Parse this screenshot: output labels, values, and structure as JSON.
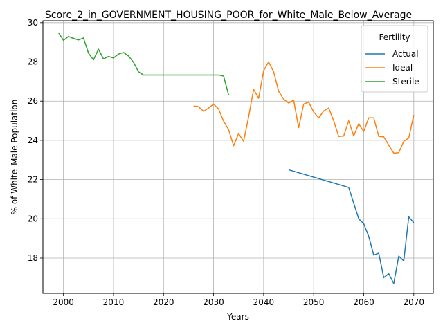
{
  "chart_data": {
    "type": "line",
    "title": "Score_2_in_GOVERNMENT_HOUSING_POOR_for_White_Male_Below_Average",
    "xlabel": "Years",
    "ylabel": "% of White_Male Population",
    "xlim": [
      1995.9,
      2073.9
    ],
    "ylim": [
      16.2,
      30.1
    ],
    "xticks": [
      2000,
      2010,
      2020,
      2030,
      2040,
      2050,
      2060,
      2070
    ],
    "yticks": [
      18,
      20,
      22,
      24,
      26,
      28,
      30
    ],
    "grid": true,
    "legend": {
      "title": "Fertility",
      "position": "top-right"
    },
    "series": [
      {
        "name": "Actual",
        "color": "#1f77b4",
        "x": [
          2045,
          2057,
          2058,
          2059,
          2060,
          2061,
          2062,
          2063,
          2064,
          2065,
          2066,
          2067,
          2068,
          2069,
          2070
        ],
        "y": [
          22.5,
          21.6,
          20.8,
          20.0,
          19.75,
          19.1,
          18.15,
          18.25,
          17.0,
          17.2,
          16.7,
          18.1,
          17.85,
          20.1,
          19.8
        ]
      },
      {
        "name": "Ideal",
        "color": "#ff7f0e",
        "x": [
          2026,
          2027,
          2028,
          2029,
          2030,
          2031,
          2032,
          2033,
          2034,
          2035,
          2036,
          2037,
          2038,
          2039,
          2040,
          2041,
          2042,
          2043,
          2044,
          2045,
          2046,
          2047,
          2048,
          2049,
          2050,
          2051,
          2052,
          2053,
          2054,
          2055,
          2056,
          2057,
          2058,
          2059,
          2060,
          2061,
          2062,
          2063,
          2064,
          2065,
          2066,
          2067,
          2068,
          2069,
          2070
        ],
        "y": [
          25.75,
          25.72,
          25.48,
          25.65,
          25.85,
          25.6,
          24.98,
          24.55,
          23.72,
          24.35,
          23.95,
          25.2,
          26.6,
          26.15,
          27.55,
          28.0,
          27.5,
          26.5,
          26.1,
          25.9,
          26.05,
          24.65,
          25.85,
          25.95,
          25.45,
          25.15,
          25.5,
          25.65,
          25.0,
          24.2,
          24.22,
          25.0,
          24.22,
          24.85,
          24.45,
          25.15,
          25.15,
          24.2,
          24.18,
          23.75,
          23.35,
          23.37,
          23.95,
          24.12,
          25.3
        ]
      },
      {
        "name": "Sterile",
        "color": "#2ca02c",
        "x": [
          1999,
          2000,
          2001,
          2002,
          2003,
          2004,
          2005,
          2006,
          2007,
          2008,
          2009,
          2010,
          2011,
          2012,
          2013,
          2014,
          2015,
          2016,
          2017,
          2018,
          2019,
          2020,
          2021,
          2022,
          2023,
          2024,
          2025,
          2026,
          2027,
          2028,
          2029,
          2030,
          2031,
          2032,
          2033
        ],
        "y": [
          29.5,
          29.1,
          29.3,
          29.2,
          29.12,
          29.22,
          28.45,
          28.1,
          28.65,
          28.15,
          28.28,
          28.2,
          28.4,
          28.48,
          28.3,
          27.98,
          27.5,
          27.33,
          27.33,
          27.33,
          27.33,
          27.33,
          27.33,
          27.33,
          27.33,
          27.33,
          27.33,
          27.33,
          27.33,
          27.33,
          27.33,
          27.33,
          27.33,
          27.28,
          26.32
        ]
      }
    ]
  }
}
